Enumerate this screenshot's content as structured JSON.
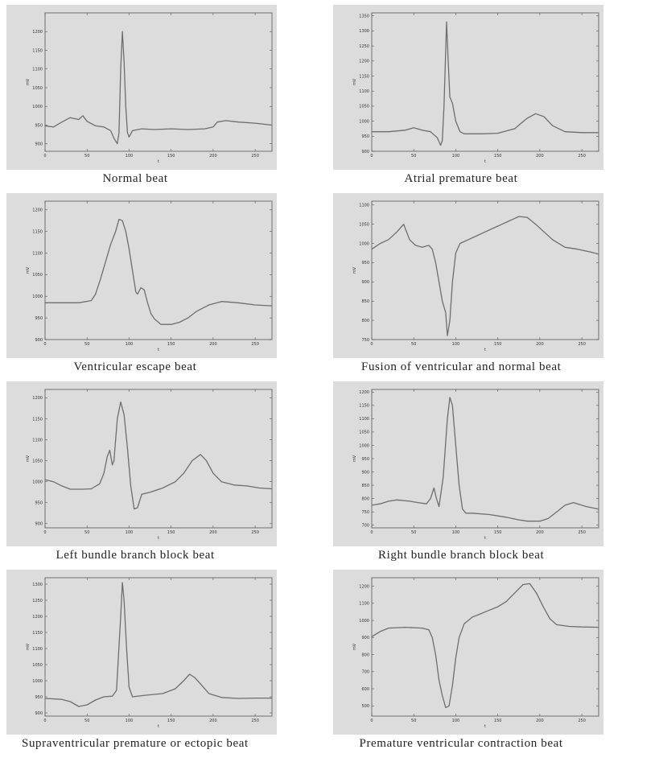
{
  "chart_data": [
    {
      "type": "line",
      "title": "Normal beat",
      "xlabel": "t",
      "ylabel": "mV",
      "xlim": [
        0,
        270
      ],
      "xticks": [
        0,
        50,
        100,
        150,
        200,
        250
      ],
      "ylim": [
        880,
        1250
      ],
      "yticks": [
        900,
        950,
        1000,
        1050,
        1100,
        1150,
        1200
      ],
      "points": [
        [
          0,
          948
        ],
        [
          10,
          945
        ],
        [
          20,
          958
        ],
        [
          30,
          970
        ],
        [
          40,
          965
        ],
        [
          45,
          975
        ],
        [
          50,
          960
        ],
        [
          60,
          948
        ],
        [
          70,
          945
        ],
        [
          78,
          935
        ],
        [
          82,
          915
        ],
        [
          86,
          900
        ],
        [
          88,
          930
        ],
        [
          90,
          1100
        ],
        [
          92,
          1200
        ],
        [
          94,
          1120
        ],
        [
          96,
          1000
        ],
        [
          98,
          930
        ],
        [
          100,
          918
        ],
        [
          104,
          935
        ],
        [
          115,
          940
        ],
        [
          130,
          938
        ],
        [
          150,
          940
        ],
        [
          170,
          938
        ],
        [
          190,
          940
        ],
        [
          200,
          945
        ],
        [
          205,
          958
        ],
        [
          215,
          962
        ],
        [
          230,
          958
        ],
        [
          250,
          955
        ],
        [
          270,
          950
        ]
      ]
    },
    {
      "type": "line",
      "title": "Atrial premature beat",
      "xlabel": "t",
      "ylabel": "mV",
      "xlim": [
        0,
        270
      ],
      "xticks": [
        0,
        50,
        100,
        150,
        200,
        250
      ],
      "ylim": [
        900,
        1360
      ],
      "yticks": [
        900,
        950,
        1000,
        1050,
        1100,
        1150,
        1200,
        1250,
        1300,
        1350
      ],
      "points": [
        [
          0,
          965
        ],
        [
          20,
          965
        ],
        [
          40,
          970
        ],
        [
          50,
          978
        ],
        [
          60,
          970
        ],
        [
          70,
          965
        ],
        [
          78,
          945
        ],
        [
          82,
          920
        ],
        [
          84,
          935
        ],
        [
          86,
          1050
        ],
        [
          89,
          1330
        ],
        [
          91,
          1200
        ],
        [
          93,
          1080
        ],
        [
          96,
          1060
        ],
        [
          100,
          1000
        ],
        [
          105,
          965
        ],
        [
          110,
          958
        ],
        [
          130,
          958
        ],
        [
          150,
          960
        ],
        [
          170,
          975
        ],
        [
          185,
          1010
        ],
        [
          195,
          1025
        ],
        [
          205,
          1015
        ],
        [
          215,
          985
        ],
        [
          230,
          965
        ],
        [
          250,
          962
        ],
        [
          270,
          962
        ]
      ]
    },
    {
      "type": "line",
      "title": "Ventricular escape beat",
      "xlabel": "t",
      "ylabel": "mV",
      "xlim": [
        0,
        270
      ],
      "xticks": [
        0,
        50,
        100,
        150,
        200,
        250
      ],
      "ylim": [
        900,
        1220
      ],
      "yticks": [
        900,
        950,
        1000,
        1050,
        1100,
        1150,
        1200
      ],
      "points": [
        [
          0,
          985
        ],
        [
          20,
          985
        ],
        [
          40,
          985
        ],
        [
          55,
          990
        ],
        [
          60,
          1005
        ],
        [
          66,
          1040
        ],
        [
          72,
          1080
        ],
        [
          78,
          1120
        ],
        [
          84,
          1150
        ],
        [
          88,
          1178
        ],
        [
          92,
          1175
        ],
        [
          96,
          1150
        ],
        [
          100,
          1110
        ],
        [
          104,
          1060
        ],
        [
          108,
          1010
        ],
        [
          110,
          1005
        ],
        [
          114,
          1020
        ],
        [
          118,
          1015
        ],
        [
          122,
          985
        ],
        [
          126,
          960
        ],
        [
          130,
          948
        ],
        [
          138,
          935
        ],
        [
          150,
          935
        ],
        [
          160,
          940
        ],
        [
          170,
          950
        ],
        [
          180,
          965
        ],
        [
          195,
          980
        ],
        [
          210,
          988
        ],
        [
          230,
          985
        ],
        [
          250,
          980
        ],
        [
          270,
          978
        ]
      ]
    },
    {
      "type": "line",
      "title": "Fusion of ventricular and normal beat",
      "xlabel": "t",
      "ylabel": "mV",
      "xlim": [
        0,
        270
      ],
      "xticks": [
        0,
        50,
        100,
        150,
        200,
        250
      ],
      "ylim": [
        750,
        1110
      ],
      "yticks": [
        750,
        800,
        850,
        900,
        950,
        1000,
        1050,
        1100
      ],
      "points": [
        [
          0,
          985
        ],
        [
          10,
          1000
        ],
        [
          20,
          1010
        ],
        [
          30,
          1030
        ],
        [
          38,
          1050
        ],
        [
          45,
          1010
        ],
        [
          52,
          995
        ],
        [
          60,
          990
        ],
        [
          68,
          995
        ],
        [
          72,
          985
        ],
        [
          76,
          950
        ],
        [
          80,
          900
        ],
        [
          84,
          850
        ],
        [
          88,
          820
        ],
        [
          90,
          760
        ],
        [
          93,
          800
        ],
        [
          96,
          900
        ],
        [
          100,
          975
        ],
        [
          105,
          1000
        ],
        [
          115,
          1010
        ],
        [
          125,
          1020
        ],
        [
          135,
          1030
        ],
        [
          145,
          1040
        ],
        [
          155,
          1050
        ],
        [
          165,
          1060
        ],
        [
          175,
          1070
        ],
        [
          185,
          1068
        ],
        [
          195,
          1050
        ],
        [
          205,
          1030
        ],
        [
          215,
          1010
        ],
        [
          230,
          990
        ],
        [
          245,
          985
        ],
        [
          260,
          978
        ],
        [
          270,
          972
        ]
      ]
    },
    {
      "type": "line",
      "title": "Left bundle branch block beat",
      "xlabel": "t",
      "ylabel": "mV",
      "xlim": [
        0,
        270
      ],
      "xticks": [
        0,
        50,
        100,
        150,
        200,
        250
      ],
      "ylim": [
        890,
        1220
      ],
      "yticks": [
        900,
        950,
        1000,
        1050,
        1100,
        1150,
        1200
      ],
      "points": [
        [
          0,
          1005
        ],
        [
          10,
          1000
        ],
        [
          20,
          990
        ],
        [
          30,
          982
        ],
        [
          45,
          982
        ],
        [
          55,
          983
        ],
        [
          65,
          995
        ],
        [
          70,
          1020
        ],
        [
          74,
          1060
        ],
        [
          77,
          1075
        ],
        [
          80,
          1040
        ],
        [
          82,
          1050
        ],
        [
          86,
          1150
        ],
        [
          90,
          1190
        ],
        [
          94,
          1160
        ],
        [
          98,
          1080
        ],
        [
          102,
          990
        ],
        [
          106,
          935
        ],
        [
          110,
          938
        ],
        [
          115,
          970
        ],
        [
          125,
          975
        ],
        [
          140,
          985
        ],
        [
          155,
          1000
        ],
        [
          165,
          1020
        ],
        [
          175,
          1050
        ],
        [
          185,
          1065
        ],
        [
          192,
          1050
        ],
        [
          200,
          1020
        ],
        [
          210,
          1000
        ],
        [
          225,
          992
        ],
        [
          240,
          990
        ],
        [
          255,
          985
        ],
        [
          270,
          983
        ]
      ]
    },
    {
      "type": "line",
      "title": "Right bundle branch block beat",
      "xlabel": "t",
      "ylabel": "mV",
      "xlim": [
        0,
        270
      ],
      "xticks": [
        0,
        50,
        100,
        150,
        200,
        250
      ],
      "ylim": [
        690,
        1210
      ],
      "yticks": [
        700,
        750,
        800,
        850,
        900,
        950,
        1000,
        1050,
        1100,
        1150,
        1200
      ],
      "points": [
        [
          0,
          775
        ],
        [
          10,
          780
        ],
        [
          20,
          790
        ],
        [
          30,
          795
        ],
        [
          45,
          790
        ],
        [
          55,
          785
        ],
        [
          65,
          780
        ],
        [
          70,
          800
        ],
        [
          74,
          840
        ],
        [
          77,
          800
        ],
        [
          80,
          770
        ],
        [
          85,
          880
        ],
        [
          90,
          1100
        ],
        [
          93,
          1180
        ],
        [
          96,
          1150
        ],
        [
          100,
          1000
        ],
        [
          104,
          850
        ],
        [
          108,
          760
        ],
        [
          112,
          745
        ],
        [
          120,
          745
        ],
        [
          140,
          740
        ],
        [
          160,
          730
        ],
        [
          175,
          720
        ],
        [
          185,
          715
        ],
        [
          200,
          715
        ],
        [
          210,
          725
        ],
        [
          220,
          750
        ],
        [
          230,
          775
        ],
        [
          240,
          785
        ],
        [
          255,
          770
        ],
        [
          270,
          760
        ]
      ]
    },
    {
      "type": "line",
      "title": "Supraventricular premature or ectopic beat",
      "xlabel": "t",
      "ylabel": "mV",
      "xlim": [
        0,
        270
      ],
      "xticks": [
        0,
        50,
        100,
        150,
        200,
        250
      ],
      "ylim": [
        890,
        1320
      ],
      "yticks": [
        900,
        950,
        1000,
        1050,
        1100,
        1150,
        1200,
        1250,
        1300
      ],
      "points": [
        [
          0,
          945
        ],
        [
          20,
          942
        ],
        [
          30,
          935
        ],
        [
          40,
          920
        ],
        [
          50,
          925
        ],
        [
          60,
          940
        ],
        [
          70,
          950
        ],
        [
          80,
          952
        ],
        [
          85,
          970
        ],
        [
          90,
          1200
        ],
        [
          92,
          1305
        ],
        [
          94,
          1250
        ],
        [
          97,
          1100
        ],
        [
          100,
          980
        ],
        [
          104,
          950
        ],
        [
          120,
          955
        ],
        [
          140,
          960
        ],
        [
          155,
          975
        ],
        [
          165,
          1000
        ],
        [
          172,
          1020
        ],
        [
          178,
          1010
        ],
        [
          185,
          990
        ],
        [
          195,
          960
        ],
        [
          210,
          948
        ],
        [
          230,
          945
        ],
        [
          250,
          946
        ],
        [
          270,
          946
        ]
      ]
    },
    {
      "type": "line",
      "title": "Premature ventricular contraction beat",
      "xlabel": "t",
      "ylabel": "mV",
      "xlim": [
        0,
        270
      ],
      "xticks": [
        0,
        50,
        100,
        150,
        200,
        250
      ],
      "ylim": [
        440,
        1250
      ],
      "yticks": [
        500,
        600,
        700,
        800,
        900,
        1000,
        1100,
        1200
      ],
      "points": [
        [
          0,
          905
        ],
        [
          10,
          935
        ],
        [
          20,
          955
        ],
        [
          40,
          960
        ],
        [
          60,
          955
        ],
        [
          68,
          945
        ],
        [
          72,
          900
        ],
        [
          76,
          800
        ],
        [
          80,
          650
        ],
        [
          84,
          560
        ],
        [
          88,
          490
        ],
        [
          92,
          500
        ],
        [
          96,
          620
        ],
        [
          100,
          780
        ],
        [
          104,
          900
        ],
        [
          110,
          980
        ],
        [
          120,
          1020
        ],
        [
          130,
          1040
        ],
        [
          140,
          1060
        ],
        [
          150,
          1080
        ],
        [
          160,
          1110
        ],
        [
          170,
          1160
        ],
        [
          180,
          1210
        ],
        [
          188,
          1215
        ],
        [
          196,
          1160
        ],
        [
          204,
          1080
        ],
        [
          212,
          1010
        ],
        [
          220,
          975
        ],
        [
          235,
          965
        ],
        [
          250,
          962
        ],
        [
          270,
          960
        ]
      ]
    }
  ]
}
